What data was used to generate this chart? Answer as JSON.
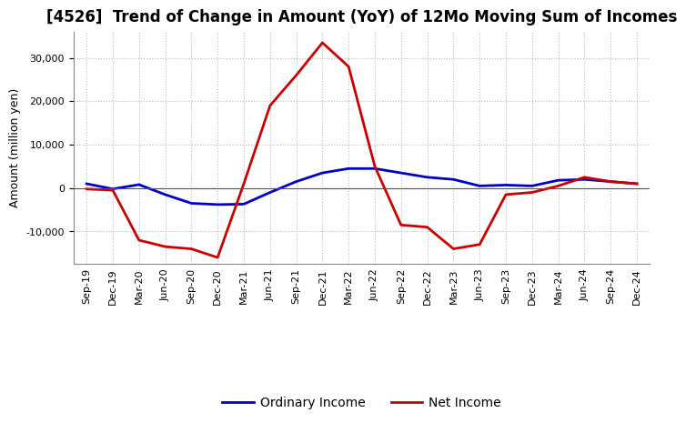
{
  "title": "[4526]  Trend of Change in Amount (YoY) of 12Mo Moving Sum of Incomes",
  "ylabel": "Amount (million yen)",
  "x_labels": [
    "Sep-19",
    "Dec-19",
    "Mar-20",
    "Jun-20",
    "Sep-20",
    "Dec-20",
    "Mar-21",
    "Jun-21",
    "Sep-21",
    "Dec-21",
    "Mar-22",
    "Jun-22",
    "Sep-22",
    "Dec-22",
    "Mar-23",
    "Jun-23",
    "Sep-23",
    "Dec-23",
    "Mar-24",
    "Jun-24",
    "Sep-24",
    "Dec-24"
  ],
  "ordinary_income": [
    1000,
    -200,
    800,
    -1500,
    -3500,
    -3800,
    -3700,
    -1000,
    1500,
    3500,
    4500,
    4500,
    3500,
    2500,
    2000,
    500,
    700,
    500,
    1800,
    2000,
    1500,
    1000
  ],
  "net_income": [
    -200,
    -500,
    -12000,
    -13500,
    -14000,
    -16000,
    1000,
    19000,
    26000,
    33500,
    28000,
    5000,
    -8500,
    -9000,
    -14000,
    -13000,
    -1500,
    -1000,
    500,
    2500,
    1500,
    1000
  ],
  "ordinary_color": "#0000cc",
  "net_color": "#cc0000",
  "ylim_min": -17500,
  "ylim_max": 36000,
  "background_color": "#ffffff",
  "grid_color": "#bbbbbb",
  "zero_line_color": "#555555",
  "title_fontsize": 12,
  "axis_label_fontsize": 9,
  "tick_fontsize": 8,
  "legend_fontsize": 10,
  "linewidth": 2.0
}
